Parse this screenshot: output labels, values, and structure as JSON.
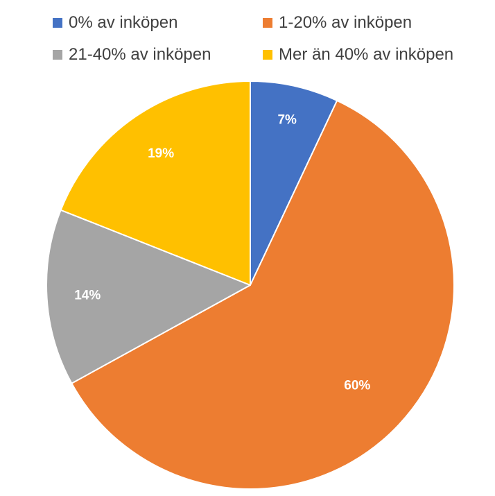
{
  "chart_data": {
    "type": "pie",
    "title": "",
    "categories": [
      "0% av inköpen",
      "1-20% av inköpen",
      "21-40% av inköpen",
      "Mer än 40% av inköpen"
    ],
    "values": [
      7,
      60,
      14,
      19
    ],
    "data_labels": [
      "7%",
      "60%",
      "14%",
      "19%"
    ],
    "colors": [
      "#4472C4",
      "#ED7D31",
      "#A5A5A5",
      "#FFC000"
    ],
    "legend": {
      "placement": "top",
      "entries": [
        "0% av inköpen",
        "1-20% av inköpen",
        "21-40% av inköpen",
        "Mer än 40% av inköpen"
      ]
    },
    "start_angle": "12 o'clock",
    "direction": "clockwise"
  }
}
